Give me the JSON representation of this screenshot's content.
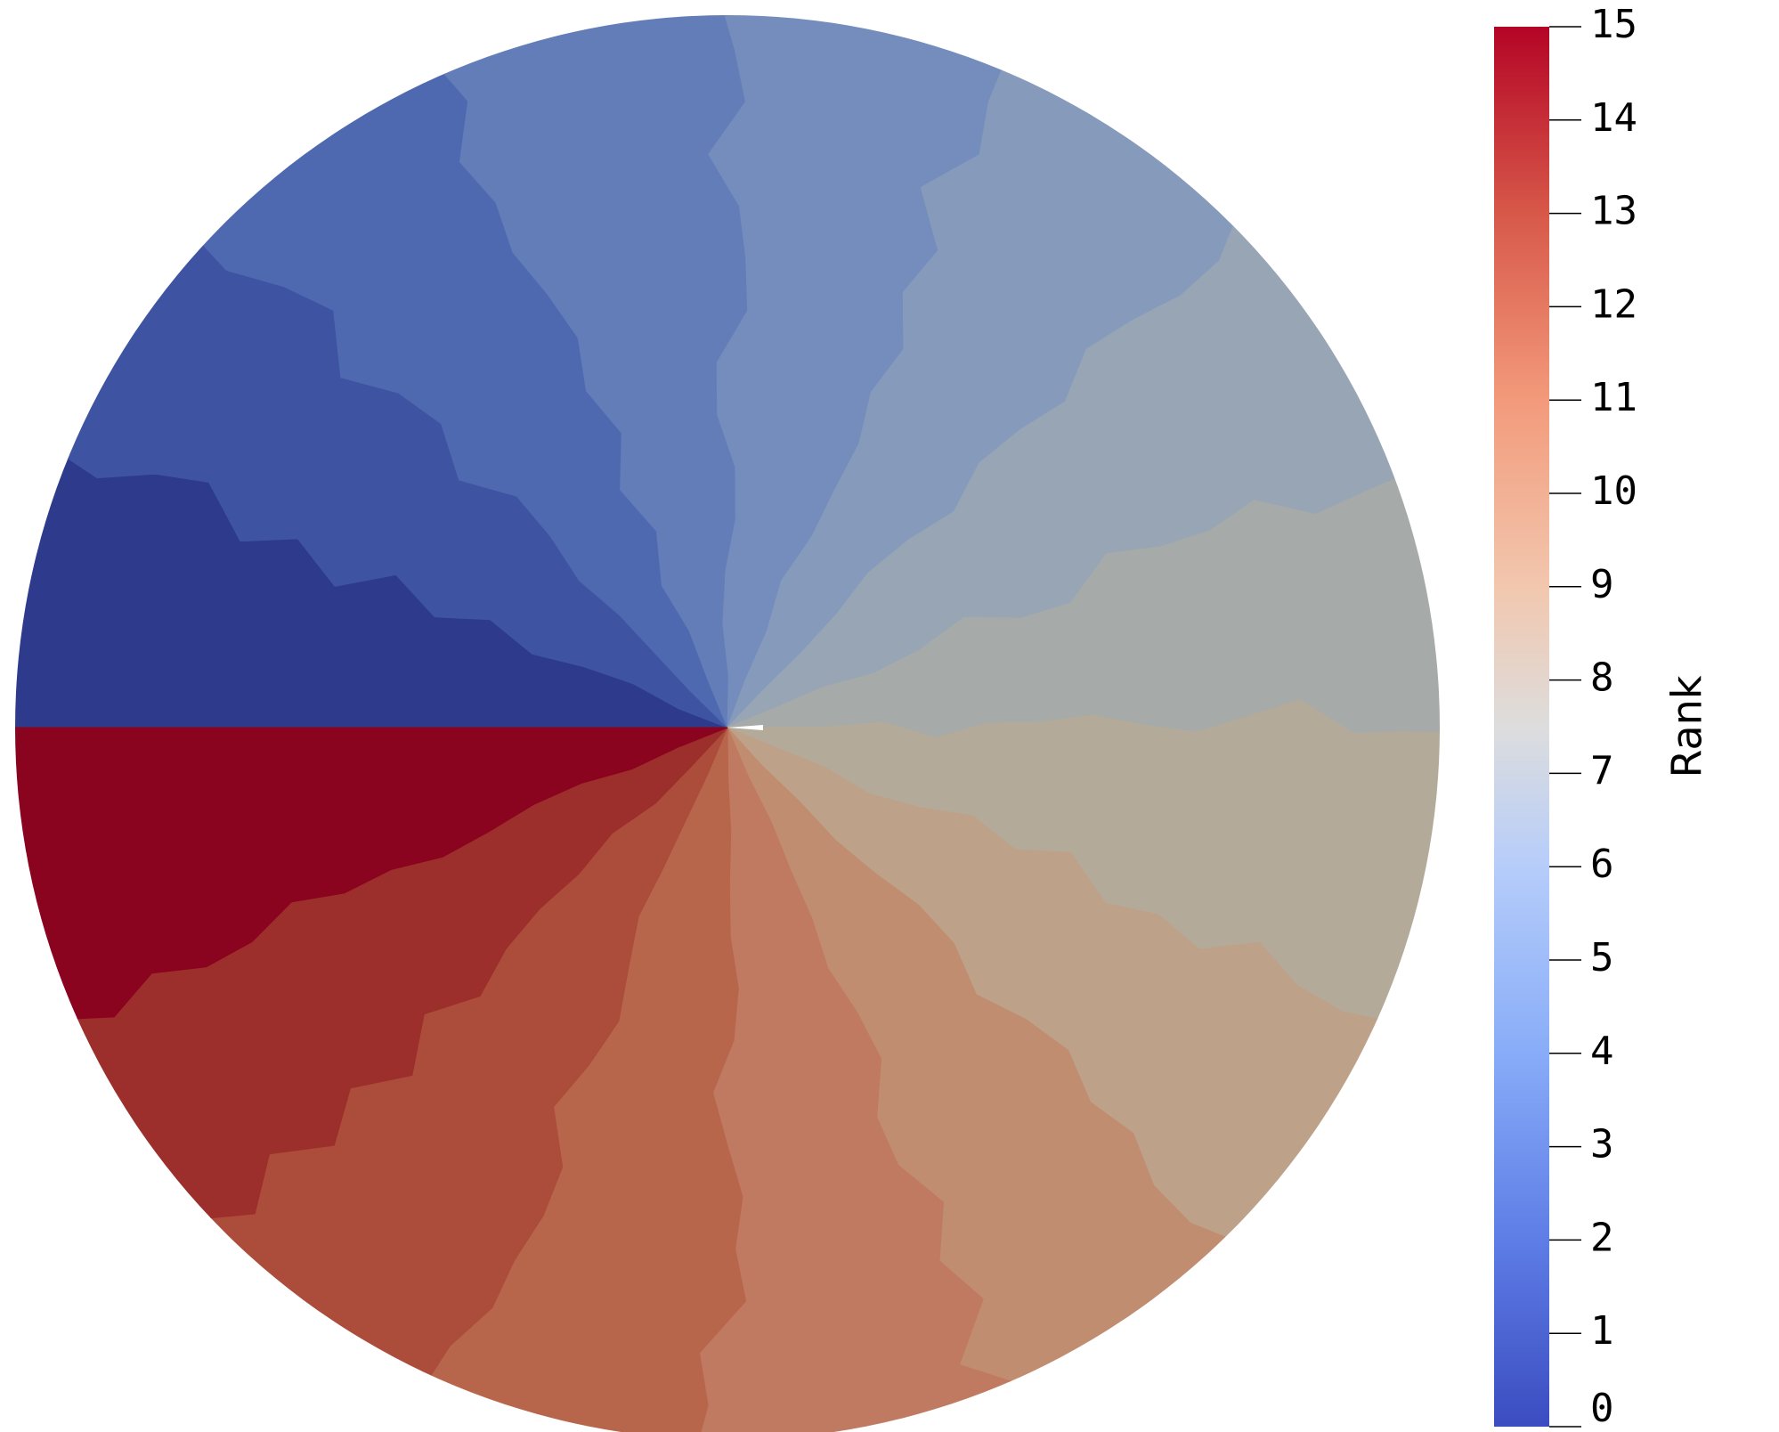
{
  "chart_data": {
    "type": "heatmap",
    "title": "",
    "description_kind": "disk-partition-rank-map",
    "colorbar": {
      "title": "Rank",
      "min": 0,
      "max": 15,
      "ticks": [
        0,
        1,
        2,
        3,
        4,
        5,
        6,
        7,
        8,
        9,
        10,
        11,
        12,
        13,
        14,
        15
      ],
      "tick_labels": [
        "0",
        "1",
        "2",
        "3",
        "4",
        "5",
        "6",
        "7",
        "8",
        "9",
        "10",
        "11",
        "12",
        "13",
        "14",
        "15"
      ],
      "colormap": "coolwarm",
      "gradient_stops": [
        {
          "value": 0,
          "color": "#3b4cc0"
        },
        {
          "value": 2,
          "color": "#5e7de6"
        },
        {
          "value": 4,
          "color": "#88acf8"
        },
        {
          "value": 6,
          "color": "#b6cdfa"
        },
        {
          "value": 7.5,
          "color": "#dddddd"
        },
        {
          "value": 9,
          "color": "#f2c7ae"
        },
        {
          "value": 11,
          "color": "#f39a7b"
        },
        {
          "value": 13,
          "color": "#d75849"
        },
        {
          "value": 15,
          "color": "#b40426"
        }
      ]
    },
    "sectors": [
      {
        "rank": 0,
        "color": "#2e3a8c"
      },
      {
        "rank": 1,
        "color": "#3e54a2"
      },
      {
        "rank": 2,
        "color": "#4f69b0"
      },
      {
        "rank": 3,
        "color": "#627db7"
      },
      {
        "rank": 4,
        "color": "#748dbc"
      },
      {
        "rank": 5,
        "color": "#869bbb"
      },
      {
        "rank": 6,
        "color": "#97a5b5"
      },
      {
        "rank": 7,
        "color": "#a6aaa9"
      },
      {
        "rank": 8,
        "color": "#b4aa99"
      },
      {
        "rank": 9,
        "color": "#bea189"
      },
      {
        "rank": 10,
        "color": "#c08d71"
      },
      {
        "rank": 11,
        "color": "#c07a61"
      },
      {
        "rank": 12,
        "color": "#b8664b"
      },
      {
        "rank": 13,
        "color": "#ac4c3b"
      },
      {
        "rank": 14,
        "color": "#9c2f2b"
      },
      {
        "rank": 15,
        "color": "#8a031f"
      }
    ]
  }
}
